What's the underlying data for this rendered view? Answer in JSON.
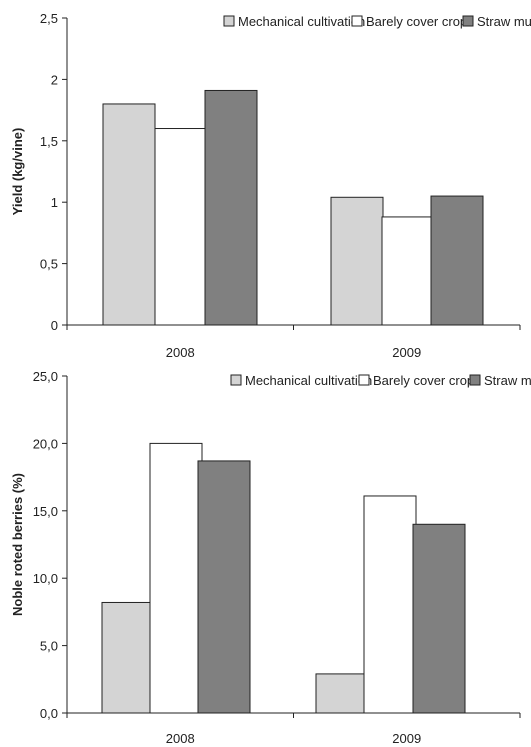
{
  "chart_data": [
    {
      "type": "bar",
      "title": "",
      "xlabel": "",
      "ylabel": "Yield (kg/vine)",
      "categories": [
        "2008",
        "2009"
      ],
      "ylim": [
        0,
        2.5
      ],
      "yticks": [
        "0",
        "0,5",
        "1",
        "1,5",
        "2",
        "2,5"
      ],
      "legend_position": "top",
      "series": [
        {
          "name": "Mechanical cultivation",
          "values": [
            1.8,
            1.04
          ],
          "color": "#d4d4d4"
        },
        {
          "name": "Barely cover crop",
          "values": [
            1.6,
            0.88
          ],
          "color": "#ffffff"
        },
        {
          "name": "Straw mulch",
          "values": [
            1.91,
            1.05
          ],
          "color": "#808080"
        }
      ]
    },
    {
      "type": "bar",
      "title": "",
      "xlabel": "",
      "ylabel": "Noble roted berries (%)",
      "categories": [
        "2008",
        "2009"
      ],
      "ylim": [
        0,
        25
      ],
      "yticks": [
        "0,0",
        "5,0",
        "10,0",
        "15,0",
        "20,0",
        "25,0"
      ],
      "legend_position": "top",
      "series": [
        {
          "name": "Mechanical cultivation",
          "values": [
            8.2,
            2.9
          ],
          "color": "#d4d4d4"
        },
        {
          "name": "Barely cover crop",
          "values": [
            20.0,
            16.1
          ],
          "color": "#ffffff"
        },
        {
          "name": "Straw mulch",
          "values": [
            18.7,
            14.0
          ],
          "color": "#808080"
        }
      ]
    }
  ]
}
